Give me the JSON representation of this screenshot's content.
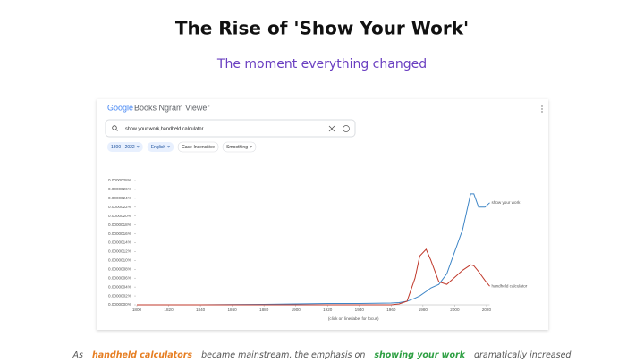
{
  "slide": {
    "title": "The Rise of 'Show Your Work'",
    "subtitle": "The moment everything changed",
    "caption": [
      "As",
      "handheld calculators",
      "became mainstream, the emphasis on",
      "showing your work",
      "dramatically increased"
    ]
  },
  "viewer": {
    "brand": "Google",
    "product": "Books Ngram Viewer",
    "query": "show your work,handheld calculator",
    "chips": [
      "1800 - 2022",
      "English",
      "Case-Insensitive",
      "Smoothing"
    ]
  },
  "chart_data": {
    "type": "line",
    "x_label": "(click on line/label for focus)",
    "x": [
      1800,
      1840,
      1880,
      1900,
      1920,
      1940,
      1960,
      1965,
      1970,
      1975,
      1978,
      1982,
      1985,
      1990,
      1995,
      2000,
      2005,
      2010,
      2012,
      2015,
      2019,
      2022
    ],
    "series": [
      {
        "name": "show your work",
        "color": "#3d85c6",
        "values": [
          0,
          0,
          1e-08,
          2e-08,
          3e-08,
          3e-08,
          4e-08,
          5e-08,
          8e-08,
          1.5e-07,
          2e-07,
          3e-07,
          3.8e-07,
          4.6e-07,
          7e-07,
          1.2e-06,
          1.7e-06,
          2.5e-06,
          2.5e-06,
          2.2e-06,
          2.2e-06,
          2.3e-06
        ]
      },
      {
        "name": "handheld calculator",
        "color": "#c0392b",
        "values": [
          0,
          0,
          0,
          0,
          0,
          0,
          0,
          2e-08,
          8e-08,
          6e-07,
          1.1e-06,
          1.25e-06,
          1e-06,
          5.2e-07,
          4.6e-07,
          6.2e-07,
          7.8e-07,
          9e-07,
          8.8e-07,
          7.5e-07,
          5.5e-07,
          4.2e-07
        ]
      }
    ],
    "xlim": [
      1800,
      2022
    ],
    "xticks": [
      1800,
      1820,
      1840,
      1860,
      1880,
      1900,
      1920,
      1940,
      1960,
      1980,
      2000,
      2020
    ],
    "ylim": [
      0,
      2.8e-06
    ],
    "yticks": [
      {
        "value": 0,
        "label": "0.0000000%"
      },
      {
        "value": 2e-07,
        "label": "0.0000002%"
      },
      {
        "value": 4e-07,
        "label": "0.0000004%"
      },
      {
        "value": 6e-07,
        "label": "0.0000006%"
      },
      {
        "value": 8e-07,
        "label": "0.0000008%"
      },
      {
        "value": 1e-06,
        "label": "0.0000010%"
      },
      {
        "value": 1.2e-06,
        "label": "0.0000012%"
      },
      {
        "value": 1.4e-06,
        "label": "0.0000014%"
      },
      {
        "value": 1.6e-06,
        "label": "0.0000016%"
      },
      {
        "value": 1.8e-06,
        "label": "0.0000018%"
      },
      {
        "value": 2e-06,
        "label": "0.0000020%"
      },
      {
        "value": 2.2e-06,
        "label": "0.0000022%"
      },
      {
        "value": 2.4e-06,
        "label": "0.0000024%"
      },
      {
        "value": 2.6e-06,
        "label": "0.0000026%"
      },
      {
        "value": 2.8e-06,
        "label": "0.0000028%"
      }
    ]
  }
}
